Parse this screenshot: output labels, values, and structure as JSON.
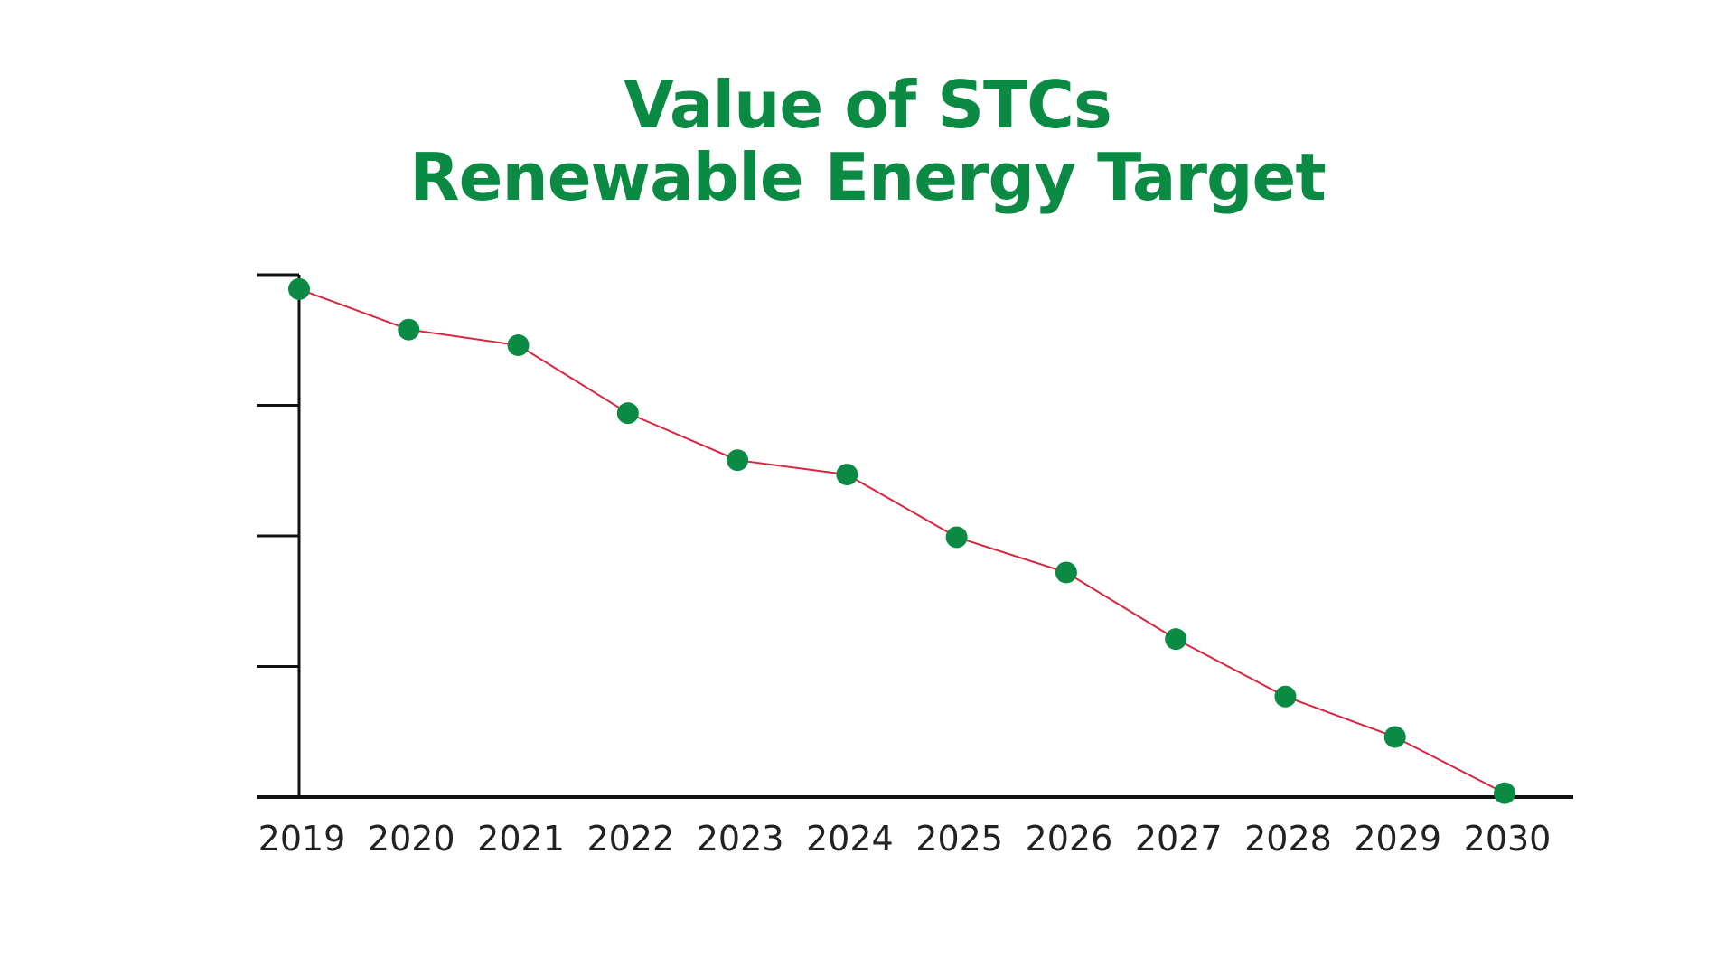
{
  "chart_data": {
    "type": "line",
    "title": "Value of STCs",
    "subtitle": "Renewable Energy Target",
    "xlabel": "",
    "ylabel": "",
    "categories": [
      "2019",
      "2020",
      "2021",
      "2022",
      "2023",
      "2024",
      "2025",
      "2026",
      "2027",
      "2028",
      "2029",
      "2030"
    ],
    "values": [
      3.89,
      3.58,
      3.46,
      2.94,
      2.58,
      2.47,
      1.99,
      1.72,
      1.21,
      0.77,
      0.46,
      0.03
    ],
    "ylim": [
      0,
      4
    ],
    "y_ticks": [
      0,
      1,
      2,
      3,
      4
    ],
    "y_tick_labels_shown": false,
    "grid": false,
    "colors": {
      "title": "#0a8a43",
      "line": "#d7263d",
      "marker": "#0a8a43",
      "axis": "#111111"
    }
  }
}
